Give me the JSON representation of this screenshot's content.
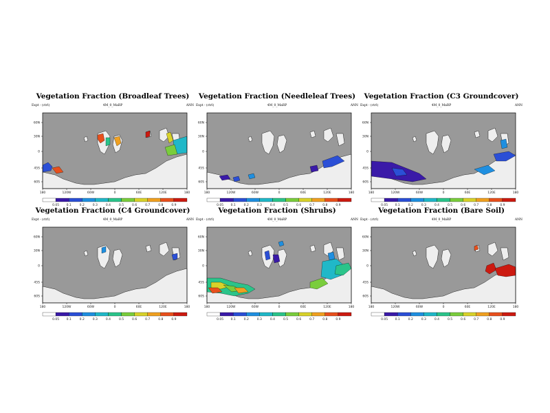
{
  "chart_data": [
    {
      "type": "heatmap",
      "title": "Vegetation Fraction (Broadleaf Trees)",
      "subtitle_left": "Expt - (ctrl)",
      "subtitle_center": "4M_0_MaRP",
      "subtitle_right": "ANN",
      "lat_ticks": [
        "60N",
        "30N",
        "0",
        "45S",
        "60S"
      ],
      "lon_ticks": [
        "180",
        "120W",
        "60W",
        "0",
        "60E",
        "120E",
        "180"
      ],
      "colorbar_ticks": [
        "0.05",
        "0.1",
        "0.2",
        "0.3",
        "0.4",
        "0.5",
        "0.6",
        "0.7",
        "0.8",
        "0.9"
      ]
    },
    {
      "type": "heatmap",
      "title": "Vegetation Fraction (Needleleaf Trees)",
      "subtitle_left": "Expt - (ctrl)",
      "subtitle_center": "4M_0_MaRP",
      "subtitle_right": "ANN",
      "lat_ticks": [
        "60N",
        "30N",
        "0",
        "45S",
        "60S"
      ],
      "lon_ticks": [
        "180",
        "120W",
        "60W",
        "0",
        "60E",
        "120E",
        "180"
      ],
      "colorbar_ticks": [
        "0.05",
        "0.1",
        "0.2",
        "0.3",
        "0.4",
        "0.5",
        "0.6",
        "0.7",
        "0.8",
        "0.9"
      ]
    },
    {
      "type": "heatmap",
      "title": "Vegetation Fraction (C3 Groundcover)",
      "subtitle_left": "Expt - (ctrl)",
      "subtitle_center": "4M_0_MaRP",
      "subtitle_right": "ANN",
      "lat_ticks": [
        "60N",
        "30N",
        "0",
        "45S",
        "60S"
      ],
      "lon_ticks": [
        "180",
        "120W",
        "60W",
        "0",
        "60E",
        "120E",
        "180"
      ],
      "colorbar_ticks": [
        "0.05",
        "0.1",
        "0.2",
        "0.3",
        "0.4",
        "0.5",
        "0.6",
        "0.7",
        "0.8",
        "0.9"
      ]
    },
    {
      "type": "heatmap",
      "title": "Vegetation Fraction (C4 Groundcover)",
      "subtitle_left": "Expt - (ctrl)",
      "subtitle_center": "4M_0_MaRP",
      "subtitle_right": "ANN",
      "lat_ticks": [
        "60N",
        "30N",
        "0",
        "45S",
        "60S"
      ],
      "lon_ticks": [
        "180",
        "120W",
        "60W",
        "0",
        "60E",
        "120E",
        "180"
      ],
      "colorbar_ticks": [
        "0.05",
        "0.1",
        "0.2",
        "0.3",
        "0.4",
        "0.5",
        "0.6",
        "0.7",
        "0.8",
        "0.9"
      ]
    },
    {
      "type": "heatmap",
      "title": "Vegetation Fraction (Shrubs)",
      "subtitle_left": "Expt - (ctrl)",
      "subtitle_center": "4M_0_MaRP",
      "subtitle_right": "ANN",
      "lat_ticks": [
        "60N",
        "30N",
        "0",
        "45S",
        "60S"
      ],
      "lon_ticks": [
        "180",
        "120W",
        "60W",
        "0",
        "60E",
        "120E",
        "180"
      ],
      "colorbar_ticks": [
        "0.05",
        "0.1",
        "0.2",
        "0.3",
        "0.4",
        "0.5",
        "0.6",
        "0.7",
        "0.8",
        "0.9"
      ]
    },
    {
      "type": "heatmap",
      "title": "Vegetation Fraction (Bare Soil)",
      "subtitle_left": "Expt - (ctrl)",
      "subtitle_center": "4M_0_MaRP",
      "subtitle_right": "ANN",
      "lat_ticks": [
        "60N",
        "30N",
        "0",
        "45S",
        "60S"
      ],
      "lon_ticks": [
        "180",
        "120W",
        "60W",
        "0",
        "60E",
        "120E",
        "180"
      ],
      "colorbar_ticks": [
        "0.05",
        "0.1",
        "0.2",
        "0.3",
        "0.4",
        "0.5",
        "0.6",
        "0.7",
        "0.8",
        "0.9"
      ]
    }
  ],
  "colors": {
    "ocean": "#999999",
    "land": "#eeeeee",
    "scale": [
      "#ffffff",
      "#3a1aa8",
      "#2b4fd6",
      "#1f8fe0",
      "#20b8c8",
      "#2bc48a",
      "#7acd3c",
      "#d8d22a",
      "#f0a020",
      "#e8501c",
      "#cc1a10"
    ]
  }
}
